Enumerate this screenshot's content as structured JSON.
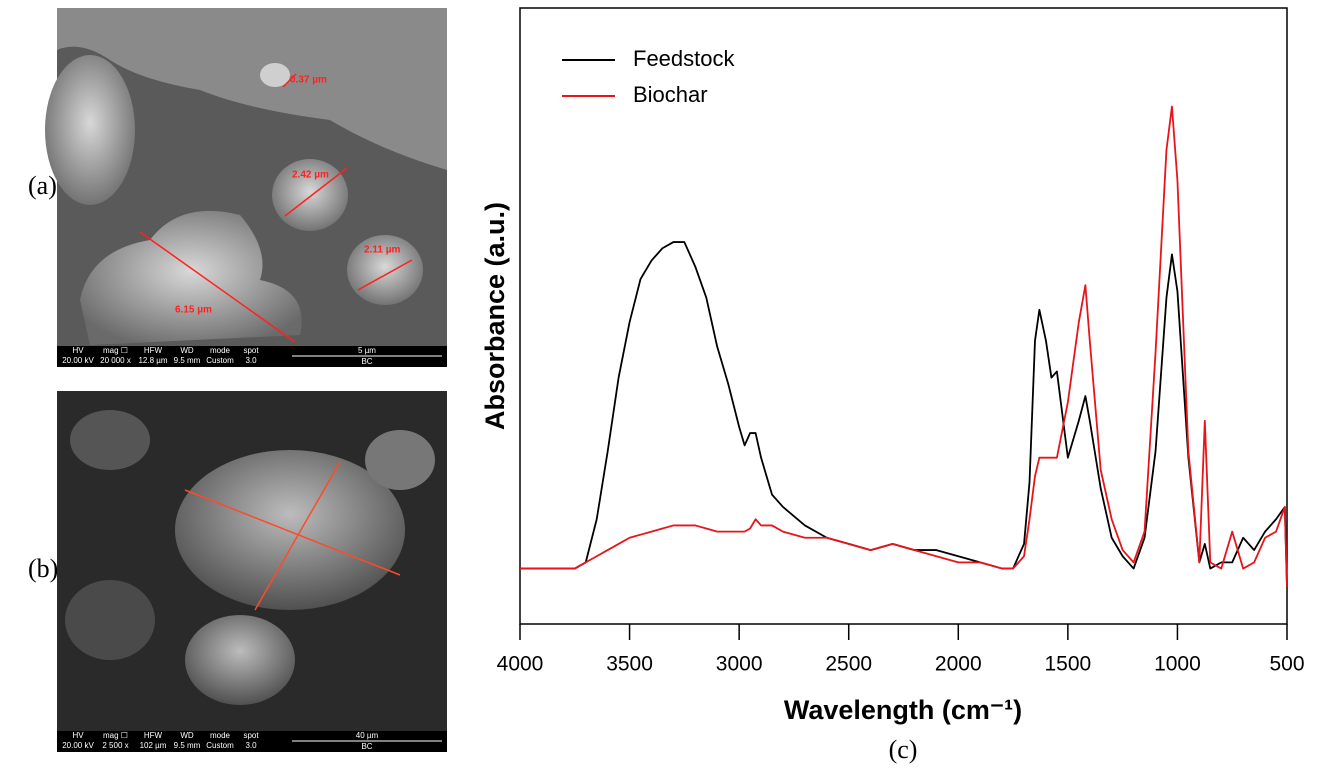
{
  "panels": {
    "a": {
      "label": "(a)",
      "measurements": [
        "0.37 µm",
        "2.42 µm",
        "2.11 µm",
        "6.15 µm"
      ],
      "info_bar": {
        "headers": [
          "HV",
          "mag ☐",
          "HFW",
          "WD",
          "mode",
          "spot"
        ],
        "values": [
          "20.00 kV",
          "20 000 x",
          "12.8 µm",
          "9.5 mm",
          "Custom",
          "3.0"
        ],
        "scale": "5 µm",
        "sample": "BC"
      }
    },
    "b": {
      "label": "(b)",
      "info_bar": {
        "headers": [
          "HV",
          "mag ☐",
          "HFW",
          "WD",
          "mode",
          "spot"
        ],
        "values": [
          "20.00 kV",
          "2 500 x",
          "102 µm",
          "9.5 mm",
          "Custom",
          "3.0"
        ],
        "scale": "40 µm",
        "sample": "BC"
      }
    }
  },
  "chart_data": {
    "type": "line",
    "panel_label": "(c)",
    "x_label": "Wavelength (cm⁻¹)",
    "y_label": "Absorbance (a.u.)",
    "x": [
      4000,
      3750,
      3700,
      3650,
      3600,
      3550,
      3500,
      3450,
      3400,
      3350,
      3300,
      3250,
      3200,
      3150,
      3100,
      3050,
      3000,
      2975,
      2950,
      2925,
      2900,
      2850,
      2800,
      2700,
      2600,
      2500,
      2400,
      2300,
      2200,
      2100,
      2000,
      1900,
      1800,
      1750,
      1700,
      1675,
      1650,
      1630,
      1600,
      1575,
      1550,
      1500,
      1450,
      1420,
      1400,
      1350,
      1300,
      1250,
      1200,
      1150,
      1100,
      1050,
      1025,
      1000,
      950,
      900,
      875,
      850,
      800,
      750,
      700,
      650,
      600,
      550,
      510,
      500
    ],
    "series": [
      {
        "name": "Feedstock",
        "color": "#000000",
        "values": [
          0.09,
          0.09,
          0.1,
          0.17,
          0.28,
          0.4,
          0.49,
          0.56,
          0.59,
          0.61,
          0.62,
          0.62,
          0.58,
          0.53,
          0.45,
          0.39,
          0.32,
          0.29,
          0.31,
          0.31,
          0.27,
          0.21,
          0.19,
          0.16,
          0.14,
          0.13,
          0.12,
          0.13,
          0.12,
          0.12,
          0.11,
          0.1,
          0.09,
          0.09,
          0.13,
          0.23,
          0.46,
          0.51,
          0.46,
          0.4,
          0.41,
          0.27,
          0.33,
          0.37,
          0.33,
          0.22,
          0.14,
          0.11,
          0.09,
          0.14,
          0.28,
          0.53,
          0.6,
          0.54,
          0.27,
          0.1,
          0.13,
          0.09,
          0.1,
          0.1,
          0.14,
          0.12,
          0.15,
          0.17,
          0.19,
          0.06
        ]
      },
      {
        "name": "Biochar",
        "color": "#e8141a",
        "values": [
          0.09,
          0.09,
          0.1,
          0.11,
          0.12,
          0.13,
          0.14,
          0.145,
          0.15,
          0.155,
          0.16,
          0.16,
          0.16,
          0.155,
          0.15,
          0.15,
          0.15,
          0.15,
          0.155,
          0.17,
          0.16,
          0.16,
          0.15,
          0.14,
          0.14,
          0.13,
          0.12,
          0.13,
          0.12,
          0.11,
          0.1,
          0.1,
          0.09,
          0.09,
          0.11,
          0.17,
          0.24,
          0.27,
          0.27,
          0.27,
          0.27,
          0.36,
          0.49,
          0.55,
          0.46,
          0.25,
          0.17,
          0.12,
          0.1,
          0.15,
          0.44,
          0.77,
          0.84,
          0.72,
          0.28,
          0.1,
          0.33,
          0.1,
          0.09,
          0.15,
          0.09,
          0.1,
          0.14,
          0.15,
          0.19,
          0.06
        ]
      }
    ],
    "xlim": [
      4000,
      500
    ],
    "xticks": [
      4000,
      3500,
      3000,
      2500,
      2000,
      1500,
      1000,
      500
    ],
    "ylim": [
      0,
      1
    ],
    "legend": "upper-left"
  }
}
